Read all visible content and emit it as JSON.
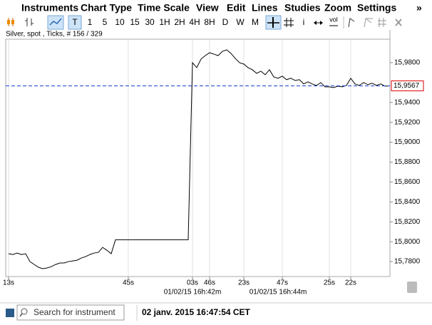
{
  "menu": [
    "Instruments",
    "Chart Type",
    "Time Scale",
    "View",
    "Edit",
    "Lines",
    "Studies",
    "Zoom",
    "Settings",
    "»"
  ],
  "toolbar": [
    "T",
    "1",
    "5",
    "10",
    "15",
    "30",
    "1H",
    "2H",
    "4H",
    "8H",
    "D",
    "W",
    "M",
    "i",
    "vol"
  ],
  "chart_data": {
    "type": "line",
    "title": "Silver, spot , Ticks, # 156 / 329",
    "color": "#000000",
    "values": [
      15.7879,
      15.7871,
      15.7886,
      15.7871,
      15.7879,
      15.78,
      15.7771,
      15.7743,
      15.7729,
      15.7736,
      15.775,
      15.7771,
      15.7786,
      15.7786,
      15.78,
      15.7807,
      15.7814,
      15.7836,
      15.785,
      15.7871,
      15.7886,
      15.7893,
      15.7943,
      15.7914,
      15.7879,
      15.802,
      15.802,
      15.802,
      15.802,
      15.802,
      15.802,
      15.802,
      15.802,
      15.802,
      15.802,
      15.802,
      15.802,
      15.802,
      15.802,
      15.802,
      15.802,
      15.802,
      15.802,
      15.98,
      15.975,
      15.9836,
      15.9871,
      15.99,
      15.9886,
      15.9871,
      15.9914,
      15.9929,
      15.9893,
      15.9843,
      15.98,
      15.9786,
      15.975,
      15.9729,
      15.9693,
      15.9714,
      15.9679,
      15.9729,
      15.9657,
      15.9643,
      15.9664,
      15.9629,
      15.9643,
      15.9621,
      15.9629,
      15.9586,
      15.9607,
      15.9586,
      15.9571,
      15.96,
      15.9557,
      15.9557,
      15.955,
      15.9564,
      15.9557,
      15.9571,
      15.9643,
      15.9586,
      15.9571,
      15.96,
      15.9579,
      15.9593,
      15.9571,
      15.9586,
      15.9564,
      15.9567
    ],
    "xlim": [
      0,
      89
    ],
    "xticks": [
      {
        "value": 0,
        "label": "13s"
      },
      {
        "value": 28,
        "label": "45s"
      },
      {
        "value": 43,
        "label": "03s"
      },
      {
        "value": 47,
        "label": "46s"
      },
      {
        "value": 55,
        "label": "23s"
      },
      {
        "value": 64,
        "label": "47s"
      },
      {
        "value": 75,
        "label": "25s"
      },
      {
        "value": 80,
        "label": "22s"
      }
    ],
    "date_labels": [
      {
        "value": 43,
        "label": "01/02/15 16h:42m"
      },
      {
        "value": 63,
        "label": "01/02/15 16h:44m"
      }
    ],
    "ylim": [
      15.765,
      16.0129
    ],
    "yticks": [
      {
        "value": 15.98,
        "label": "15,9800"
      },
      {
        "value": 15.94,
        "label": "15,9400"
      },
      {
        "value": 15.92,
        "label": "15,9200"
      },
      {
        "value": 15.9,
        "label": "15,9000"
      },
      {
        "value": 15.88,
        "label": "15,8800"
      },
      {
        "value": 15.86,
        "label": "15,8600"
      },
      {
        "value": 15.84,
        "label": "15,8400"
      },
      {
        "value": 15.82,
        "label": "15,8200"
      },
      {
        "value": 15.8,
        "label": "15,8000"
      },
      {
        "value": 15.78,
        "label": "15,7800"
      }
    ],
    "current_price": {
      "value": 15.9567,
      "label": "15,9567"
    },
    "grid": true
  },
  "status": {
    "search_placeholder": "Search for instrument",
    "datetime": "02 janv. 2015 16:47:54 CET"
  }
}
